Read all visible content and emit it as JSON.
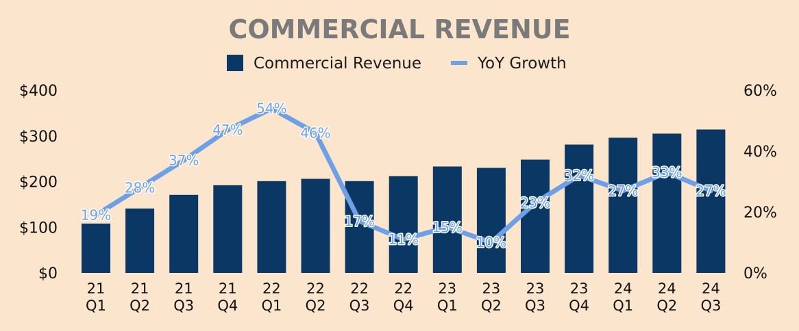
{
  "chart_data": {
    "type": "bar+line",
    "title": "COMMERCIAL REVENUE",
    "categories": [
      [
        "21",
        "Q1"
      ],
      [
        "21",
        "Q2"
      ],
      [
        "21",
        "Q3"
      ],
      [
        "21",
        "Q4"
      ],
      [
        "22",
        "Q1"
      ],
      [
        "22",
        "Q2"
      ],
      [
        "22",
        "Q3"
      ],
      [
        "22",
        "Q4"
      ],
      [
        "23",
        "Q1"
      ],
      [
        "23",
        "Q2"
      ],
      [
        "23",
        "Q3"
      ],
      [
        "23",
        "Q4"
      ],
      [
        "24",
        "Q1"
      ],
      [
        "24",
        "Q2"
      ],
      [
        "24",
        "Q3"
      ]
    ],
    "series": [
      {
        "name": "Commercial Revenue",
        "type": "bar",
        "axis": "left",
        "color": "#0a3764",
        "values": [
          108,
          141,
          171,
          192,
          201,
          206,
          201,
          212,
          233,
          230,
          248,
          281,
          296,
          305,
          314
        ]
      },
      {
        "name": "YoY Growth",
        "type": "line",
        "axis": "right",
        "color": "#6fa0e6",
        "values": [
          19,
          28,
          37,
          47,
          54,
          46,
          17,
          11,
          15,
          10,
          23,
          32,
          27,
          33,
          27
        ],
        "labels": [
          "19%",
          "28%",
          "37%",
          "47%",
          "54%",
          "46%",
          "17%",
          "11%",
          "15%",
          "10%",
          "23%",
          "32%",
          "27%",
          "33%",
          "27%"
        ]
      }
    ],
    "y_left": {
      "min": 0,
      "max": 400,
      "ticks": [
        0,
        100,
        200,
        300,
        400
      ],
      "tick_labels": [
        "$0",
        "$100",
        "$200",
        "$300",
        "$400"
      ]
    },
    "y_right": {
      "min": 0,
      "max": 60,
      "ticks": [
        0,
        20,
        40,
        60
      ],
      "tick_labels": [
        "0%",
        "20%",
        "40%",
        "60%"
      ]
    },
    "grid": false,
    "legend_position": "top-center"
  }
}
